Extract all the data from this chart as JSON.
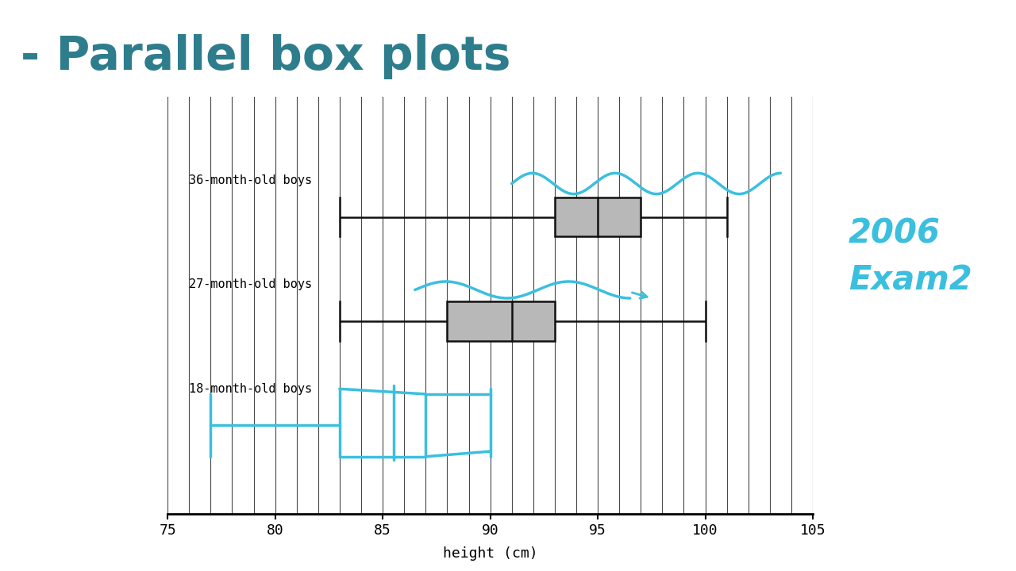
{
  "title": "- Parallel box plots",
  "title_color": "#2e7d8c",
  "xlabel": "height (cm)",
  "xlim": [
    75,
    105
  ],
  "ylim": [
    0,
    4
  ],
  "box_36": {
    "whisker_low": 83,
    "q1": 93,
    "median": 95,
    "q3": 97,
    "whisker_high": 101
  },
  "box_27": {
    "whisker_low": 83,
    "q1": 88,
    "median": 91,
    "q3": 93,
    "whisker_high": 100
  },
  "box_color": "#b8b8b8",
  "box_edgecolor": "#111111",
  "background_color": "#ffffff",
  "grid_color": "#333333",
  "annotation_color": "#3bbfdf",
  "label_36": "36-month-old boys",
  "label_27": "27-month-old boys",
  "label_18": "18-month-old boys",
  "xticks": [
    75,
    80,
    85,
    90,
    95,
    100,
    105
  ]
}
